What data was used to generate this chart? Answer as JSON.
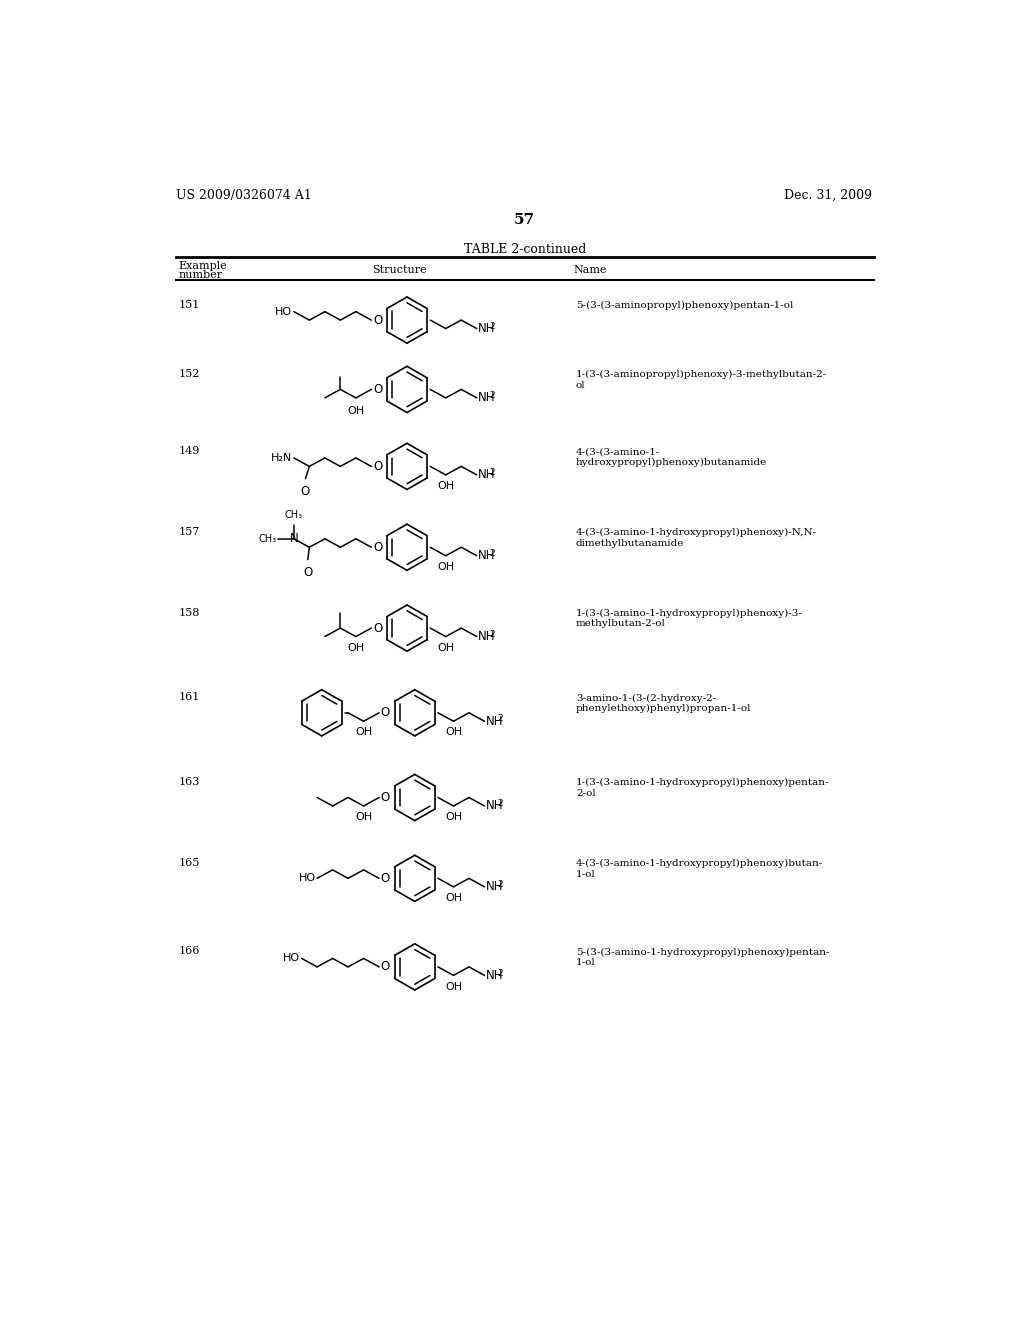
{
  "page_header_left": "US 2009/0326074 A1",
  "page_header_right": "Dec. 31, 2009",
  "page_number": "57",
  "table_title": "TABLE 2-continued",
  "bg_color": "#ffffff",
  "text_color": "#000000",
  "rows": [
    {
      "number": "151",
      "name": "5-(3-(3-aminopropyl)phenoxy)pentan-1-ol"
    },
    {
      "number": "152",
      "name": "1-(3-(3-aminopropyl)phenoxy)-3-methylbutan-2-\nol"
    },
    {
      "number": "149",
      "name": "4-(3-(3-amino-1-\nhydroxypropyl)phenoxy)butanamide"
    },
    {
      "number": "157",
      "name": "4-(3-(3-amino-1-hydroxypropyl)phenoxy)-N,N-\ndimethylbutanamide"
    },
    {
      "number": "158",
      "name": "1-(3-(3-amino-1-hydroxypropyl)phenoxy)-3-\nmethylbutan-2-ol"
    },
    {
      "number": "161",
      "name": "3-amino-1-(3-(2-hydroxy-2-\nphenylethoxy)phenyl)propan-1-ol"
    },
    {
      "number": "163",
      "name": "1-(3-(3-amino-1-hydroxypropyl)phenoxy)pentan-\n2-ol"
    },
    {
      "number": "165",
      "name": "4-(3-(3-amino-1-hydroxypropyl)phenoxy)butan-\n1-ol"
    },
    {
      "number": "166",
      "name": "5-(3-(3-amino-1-hydroxypropyl)phenoxy)pentan-\n1-ol"
    }
  ]
}
